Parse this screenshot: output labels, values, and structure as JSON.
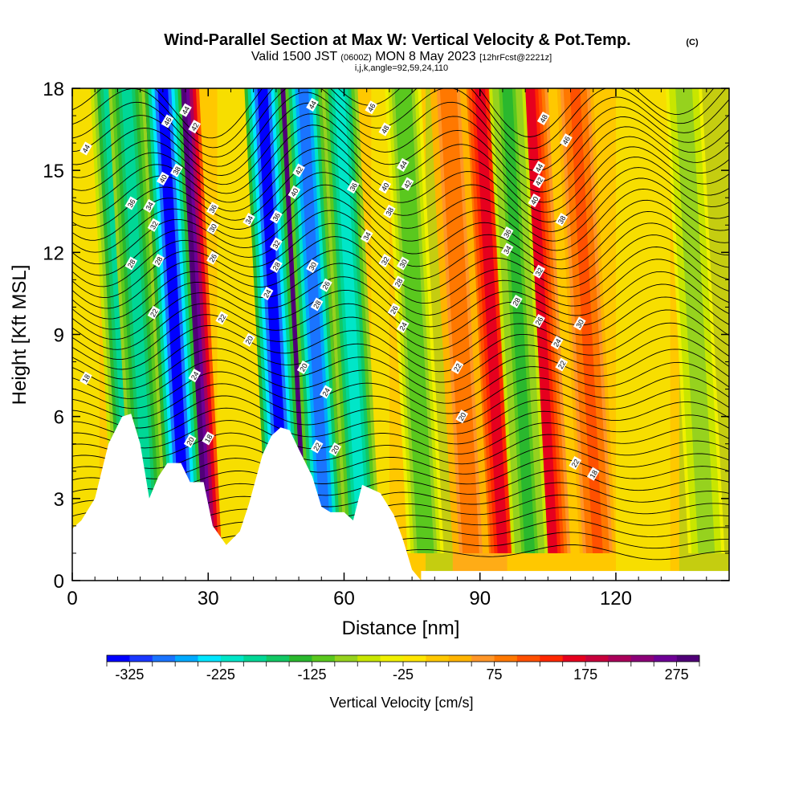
{
  "titles": {
    "main": "Wind-Parallel Section at Max W: Vertical Velocity & Pot.Temp.",
    "copyright": "(C)",
    "valid_prefix": "Valid 1500 JST",
    "valid_utc": "(0600Z)",
    "valid_date": "MON 8 May 2023",
    "forecast": "[12hrFcst@2221z]",
    "indices": "i,j,k,angle=92,59,24,110"
  },
  "chart_data": {
    "type": "heatmap",
    "xlabel": "Distance [nm]",
    "ylabel": "Height [Kft MSL]",
    "xlim": [
      0,
      145
    ],
    "ylim": [
      0,
      18
    ],
    "x_ticks": [
      0,
      30,
      60,
      90,
      120
    ],
    "y_ticks": [
      0,
      3,
      6,
      9,
      12,
      15,
      18
    ],
    "colorbar": {
      "label": "Vertical Velocity [cm/s]",
      "min": -350,
      "max": 300,
      "step": 25,
      "tick_labels": [
        "-325",
        "-225",
        "-125",
        "-25",
        "75",
        "175",
        "275"
      ],
      "colors": [
        "#0000ff",
        "#1a38ff",
        "#1a74ff",
        "#00aaff",
        "#00e6ff",
        "#00e6c8",
        "#00d796",
        "#12c864",
        "#2ab82e",
        "#5ac81e",
        "#96d21e",
        "#c8e600",
        "#f0f000",
        "#ffe600",
        "#ffc800",
        "#ffb400",
        "#ff9628",
        "#ff7800",
        "#ff5000",
        "#ff2800",
        "#e6001e",
        "#c8003c",
        "#aa005a",
        "#8c0078",
        "#6e0096",
        "#500078"
      ]
    },
    "updrafts": [
      {
        "x": 21,
        "strength": 280
      },
      {
        "x": 29,
        "strength": 300
      },
      {
        "x": 52,
        "strength": 310
      },
      {
        "x": 60,
        "strength": 240
      },
      {
        "x": 95,
        "strength": 150
      },
      {
        "x": 106,
        "strength": 160
      },
      {
        "x": 116,
        "strength": 110
      },
      {
        "x": 88,
        "strength": 90
      }
    ],
    "downdrafts": [
      {
        "x": 13,
        "strength": 180
      },
      {
        "x": 17,
        "strength": 200
      },
      {
        "x": 25,
        "strength": 330
      },
      {
        "x": 47,
        "strength": 350
      },
      {
        "x": 56,
        "strength": 300
      },
      {
        "x": 64,
        "strength": 220
      },
      {
        "x": 78,
        "strength": 120
      },
      {
        "x": 101,
        "strength": 140
      },
      {
        "x": 140,
        "strength": 100
      }
    ],
    "terrain": [
      [
        0,
        1.9
      ],
      [
        2,
        2.2
      ],
      [
        5,
        3.0
      ],
      [
        8,
        5.0
      ],
      [
        11,
        6.0
      ],
      [
        13,
        6.1
      ],
      [
        15,
        5.0
      ],
      [
        17,
        3.0
      ],
      [
        19,
        3.8
      ],
      [
        21,
        4.3
      ],
      [
        24,
        4.3
      ],
      [
        26,
        3.6
      ],
      [
        29,
        3.6
      ],
      [
        31,
        2.0
      ],
      [
        34,
        1.3
      ],
      [
        37,
        1.8
      ],
      [
        39,
        2.8
      ],
      [
        42,
        4.6
      ],
      [
        44,
        5.3
      ],
      [
        46,
        5.6
      ],
      [
        48,
        5.5
      ],
      [
        50,
        4.8
      ],
      [
        53,
        3.8
      ],
      [
        55,
        2.7
      ],
      [
        57,
        2.5
      ],
      [
        60,
        2.5
      ],
      [
        62,
        2.2
      ],
      [
        64,
        3.5
      ],
      [
        68,
        3.2
      ],
      [
        71,
        2.4
      ],
      [
        73,
        1.5
      ],
      [
        75,
        0.4
      ],
      [
        77,
        0.0
      ],
      [
        145,
        0.0
      ]
    ],
    "theta_label_positions": [
      {
        "label": "44",
        "x": 3,
        "y": 15.8
      },
      {
        "label": "36",
        "x": 13,
        "y": 13.8
      },
      {
        "label": "34",
        "x": 17,
        "y": 13.7
      },
      {
        "label": "32",
        "x": 18,
        "y": 13.0
      },
      {
        "label": "28",
        "x": 13,
        "y": 11.6
      },
      {
        "label": "28",
        "x": 19,
        "y": 11.7
      },
      {
        "label": "22",
        "x": 18,
        "y": 9.8
      },
      {
        "label": "18",
        "x": 3,
        "y": 7.4
      },
      {
        "label": "40",
        "x": 20,
        "y": 14.7
      },
      {
        "label": "38",
        "x": 23,
        "y": 15.0
      },
      {
        "label": "46",
        "x": 21,
        "y": 16.8
      },
      {
        "label": "44",
        "x": 25,
        "y": 17.2
      },
      {
        "label": "42",
        "x": 27,
        "y": 16.6
      },
      {
        "label": "36",
        "x": 31,
        "y": 13.6
      },
      {
        "label": "30",
        "x": 31,
        "y": 12.9
      },
      {
        "label": "26",
        "x": 31,
        "y": 11.8
      },
      {
        "label": "22",
        "x": 33,
        "y": 9.6
      },
      {
        "label": "20",
        "x": 39,
        "y": 8.8
      },
      {
        "label": "24",
        "x": 27,
        "y": 7.5
      },
      {
        "label": "20",
        "x": 26,
        "y": 5.1
      },
      {
        "label": "18",
        "x": 30,
        "y": 5.2
      },
      {
        "label": "34",
        "x": 39,
        "y": 13.2
      },
      {
        "label": "36",
        "x": 45,
        "y": 13.3
      },
      {
        "label": "32",
        "x": 45,
        "y": 12.3
      },
      {
        "label": "28",
        "x": 45,
        "y": 11.5
      },
      {
        "label": "24",
        "x": 43,
        "y": 10.5
      },
      {
        "label": "44",
        "x": 53,
        "y": 17.4
      },
      {
        "label": "42",
        "x": 50,
        "y": 15.0
      },
      {
        "label": "40",
        "x": 49,
        "y": 14.2
      },
      {
        "label": "30",
        "x": 53,
        "y": 11.5
      },
      {
        "label": "28",
        "x": 54,
        "y": 10.1
      },
      {
        "label": "26",
        "x": 56,
        "y": 10.8
      },
      {
        "label": "20",
        "x": 51,
        "y": 7.8
      },
      {
        "label": "24",
        "x": 56,
        "y": 6.9
      },
      {
        "label": "22",
        "x": 54,
        "y": 4.9
      },
      {
        "label": "20",
        "x": 58,
        "y": 4.8
      },
      {
        "label": "36",
        "x": 62,
        "y": 14.4
      },
      {
        "label": "46",
        "x": 66,
        "y": 17.3
      },
      {
        "label": "48",
        "x": 69,
        "y": 16.5
      },
      {
        "label": "44",
        "x": 73,
        "y": 15.2
      },
      {
        "label": "42",
        "x": 74,
        "y": 14.5
      },
      {
        "label": "40",
        "x": 69,
        "y": 14.4
      },
      {
        "label": "38",
        "x": 70,
        "y": 13.5
      },
      {
        "label": "34",
        "x": 65,
        "y": 12.6
      },
      {
        "label": "32",
        "x": 69,
        "y": 11.7
      },
      {
        "label": "30",
        "x": 73,
        "y": 11.6
      },
      {
        "label": "28",
        "x": 72,
        "y": 10.9
      },
      {
        "label": "26",
        "x": 71,
        "y": 9.9
      },
      {
        "label": "24",
        "x": 73,
        "y": 9.3
      },
      {
        "label": "22",
        "x": 85,
        "y": 7.8
      },
      {
        "label": "20",
        "x": 86,
        "y": 6.0
      },
      {
        "label": "48",
        "x": 104,
        "y": 16.9
      },
      {
        "label": "46",
        "x": 109,
        "y": 16.1
      },
      {
        "label": "44",
        "x": 103,
        "y": 15.1
      },
      {
        "label": "42",
        "x": 103,
        "y": 14.6
      },
      {
        "label": "40",
        "x": 102,
        "y": 13.9
      },
      {
        "label": "38",
        "x": 108,
        "y": 13.2
      },
      {
        "label": "36",
        "x": 96,
        "y": 12.7
      },
      {
        "label": "34",
        "x": 96,
        "y": 12.1
      },
      {
        "label": "32",
        "x": 103,
        "y": 11.3
      },
      {
        "label": "28",
        "x": 98,
        "y": 10.2
      },
      {
        "label": "26",
        "x": 103,
        "y": 9.5
      },
      {
        "label": "30",
        "x": 112,
        "y": 9.4
      },
      {
        "label": "24",
        "x": 107,
        "y": 8.7
      },
      {
        "label": "22",
        "x": 108,
        "y": 7.9
      },
      {
        "label": "22",
        "x": 111,
        "y": 4.3
      },
      {
        "label": "18",
        "x": 115,
        "y": 3.9
      }
    ]
  }
}
